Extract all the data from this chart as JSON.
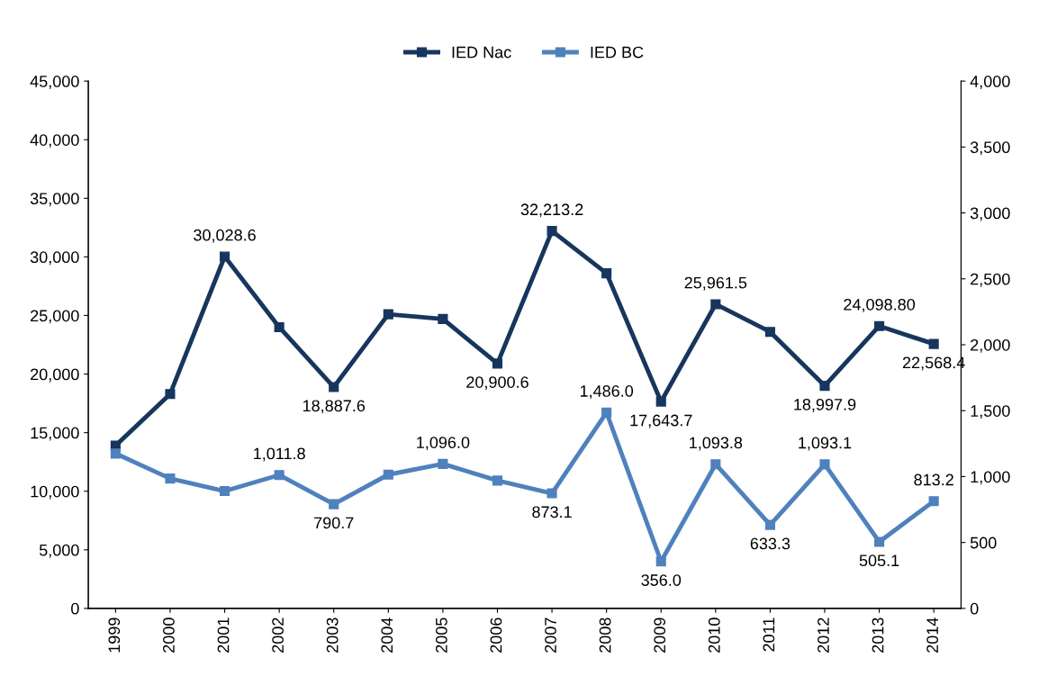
{
  "chart_data": {
    "type": "line",
    "categories": [
      "1999",
      "2000",
      "2001",
      "2002",
      "2003",
      "2004",
      "2005",
      "2006",
      "2007",
      "2008",
      "2009",
      "2010",
      "2011",
      "2012",
      "2013",
      "2014"
    ],
    "series": [
      {
        "name": "IED Nac",
        "color": "#17365d",
        "values": [
          13900,
          18300,
          30028.6,
          24000,
          18887.6,
          25100,
          24700,
          20900.6,
          32213.2,
          28600,
          17643.7,
          25961.5,
          23600,
          18997.9,
          24098.8,
          22568.4
        ],
        "value_labels": [
          null,
          null,
          "30,028.6",
          null,
          "18,887.6",
          null,
          null,
          "20,900.6",
          "32,213.2",
          null,
          "17,643.7",
          "25,961.5",
          null,
          "18,997.9",
          "24,098.80",
          "22,568.4"
        ]
      },
      {
        "name": "IED BC",
        "color": "#4f81bd",
        "axis": "y2",
        "values": [
          1175,
          985,
          890,
          1011.8,
          790.7,
          1015,
          1096.0,
          970,
          873.1,
          1486.0,
          356.0,
          1093.8,
          633.3,
          1093.1,
          505.1,
          813.2
        ],
        "value_labels": [
          null,
          null,
          null,
          "1,011.8",
          "790.7",
          null,
          "1,096.0",
          null,
          "873.1",
          "1,486.0",
          "356.0",
          "1,093.8",
          "633.3",
          "1,093.1",
          "505.1",
          "813.2"
        ]
      }
    ],
    "ylim": [
      0,
      45000
    ],
    "yticks": [
      0,
      {
        "value": 5000,
        "label": "5,000"
      },
      {
        "value": 10000,
        "label": "10,000"
      },
      {
        "value": 15000,
        "label": "15,000"
      },
      {
        "value": 20000,
        "label": "20,000"
      },
      {
        "value": 25000,
        "label": "25,000"
      },
      {
        "value": 30000,
        "label": "30,000"
      },
      {
        "value": 35000,
        "label": "35,000"
      },
      {
        "value": 40000,
        "label": "40,000"
      },
      {
        "value": 45000,
        "label": "45,000"
      }
    ],
    "y2lim": [
      0,
      4000
    ],
    "y2ticks": [
      0,
      500,
      {
        "value": 1000,
        "label": "1,000"
      },
      {
        "value": 1500,
        "label": "1,500"
      },
      {
        "value": 2000,
        "label": "2,000"
      },
      {
        "value": 2500,
        "label": "2,500"
      },
      {
        "value": 3000,
        "label": "3,000"
      },
      {
        "value": 3500,
        "label": "3,500"
      },
      {
        "value": 4000,
        "label": "4,000"
      }
    ],
    "grid": false,
    "legend": "top",
    "marker": "square",
    "line_style": "solid"
  }
}
